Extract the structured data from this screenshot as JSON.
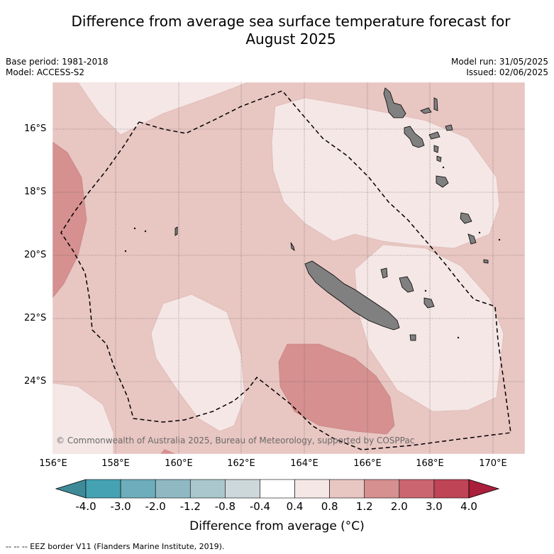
{
  "title_line1": "Difference from average sea surface temperature forecast for",
  "title_line2": "August 2025",
  "base_period": "Base period: 1981-2018",
  "model": "Model: ACCESS-S2",
  "model_run": "Model run: 31/05/2025",
  "issued": "Issued: 02/06/2025",
  "copyright": "© Commonwealth of Australia 2025, Bureau of Meteorology, supported by COSPPac",
  "lat_labels": [
    "16°S",
    "18°S",
    "20°S",
    "22°S",
    "24°S"
  ],
  "lon_labels": [
    "156°E",
    "158°E",
    "160°E",
    "162°E",
    "164°E",
    "166°E",
    "168°E",
    "170°E"
  ],
  "colorbar": {
    "title": "Difference from average (°C)",
    "ticks": [
      "-4.0",
      "-3.0",
      "-2.0",
      "-1.2",
      "-0.8",
      "-0.4",
      "0.4",
      "0.8",
      "1.2",
      "2.0",
      "3.0",
      "4.0"
    ],
    "colors": [
      "#3f8a98",
      "#44a2b2",
      "#6eadbb",
      "#8fb8c3",
      "#a9c7cc",
      "#cdd8db",
      "#ffffff",
      "#f5e7e6",
      "#e8c6c2",
      "#d5908f",
      "#cb6670",
      "#be4456",
      "#aa1f3b"
    ]
  },
  "footnote": "-- -- -- EEZ border V11 (Flanders Marine Institute, 2019).",
  "map_colors": {
    "base": "#e8c6c2",
    "light": "#f5e7e6",
    "warm": "#d5908f",
    "land": "#808080"
  }
}
